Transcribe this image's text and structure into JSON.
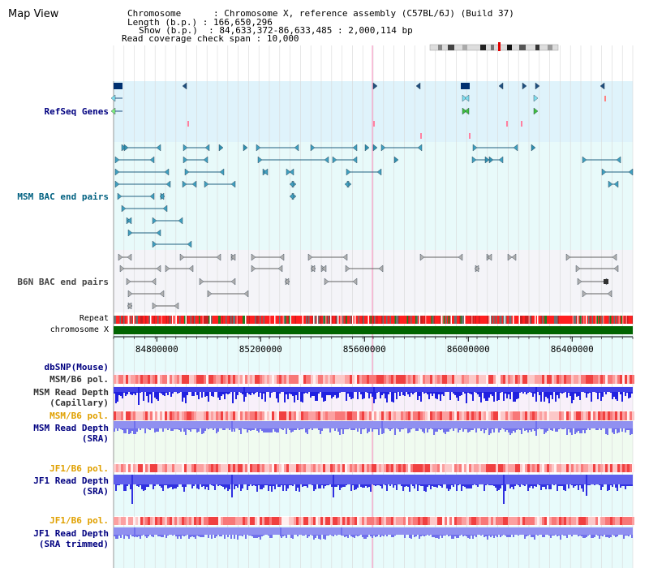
{
  "app": {
    "title": "Map View"
  },
  "header": {
    "chromosome_key": "Chromosome      ",
    "chromosome_val": ": Chromosome X, reference assembly (C57BL/6J) (Build 37)",
    "length_key": "Length (b.p.) ",
    "length_val": ": 166,650,296",
    "show_key": "Show (b.p.)  ",
    "show_val": ": 84,633,372-86,633,485 : 2,000,114 bp",
    "coverage_key": "Read coverage check span ",
    "coverage_val": ": 10,000"
  },
  "tracks": {
    "refseq": {
      "label": "RefSeq Genes",
      "color": "#000080"
    },
    "msm_bac": {
      "label": "MSM BAC end pairs",
      "color": "#006080"
    },
    "b6n_bac": {
      "label": "B6N BAC end pairs",
      "color": "#444444"
    },
    "repeat": {
      "label": "Repeat"
    },
    "chromosome": {
      "label": "chromosome X"
    },
    "dbsnp": {
      "label": "dbSNP(Mouse)",
      "color": "#000080"
    },
    "msm_b6_pol": {
      "label": "MSM/B6 pol.",
      "color": "#333333"
    },
    "msm_depth_cap": {
      "label": "MSM Read Depth\n(Capillary)",
      "color": "#333333"
    },
    "msm_b6_pol2": {
      "label": "MSM/B6 pol.",
      "color": "#e0a000"
    },
    "msm_depth_sra": {
      "label": "MSM Read Depth\n(SRA)",
      "color": "#000080"
    },
    "jf1_b6_pol": {
      "label": "JF1/B6 pol.",
      "color": "#e0a000"
    },
    "jf1_depth_sra": {
      "label": "JF1 Read Depth\n(SRA)",
      "color": "#000080"
    },
    "jf1_b6_pol2": {
      "label": "JF1/B6 pol.",
      "color": "#e0a000"
    },
    "jf1_depth_trim": {
      "label": "JF1 Read Depth\n(SRA trimmed)",
      "color": "#000080"
    }
  },
  "axis": {
    "ticks": [
      "84800000",
      "85200000",
      "85600000",
      "86000000",
      "86400000"
    ],
    "tick_values": [
      84800000,
      85200000,
      85600000,
      86000000,
      86400000
    ],
    "start": 84633372,
    "end": 86633485
  },
  "colors": {
    "refseq_bg": "#dff3fb",
    "msm_bg": "#e8fafa",
    "b6n_bg": "#f4f4f8",
    "chromosome_bar": "#006400",
    "cursor_line": "#ff80c0",
    "depth_blue": "#2020e0",
    "depth_light": "#8080f0"
  }
}
